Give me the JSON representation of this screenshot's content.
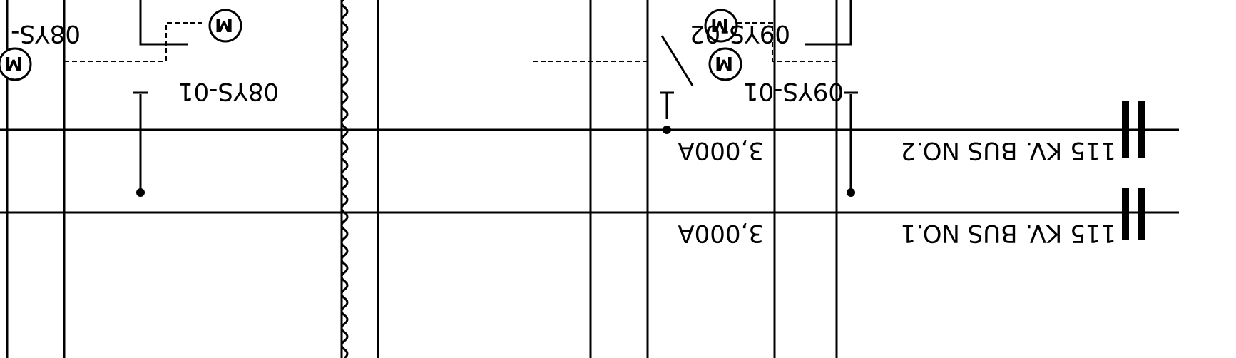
{
  "buses": [
    {
      "label": "115 KV. BUS NO.2",
      "rating": "3,000A"
    },
    {
      "label": "115 KV. BUS NO.1",
      "rating": "3,000A"
    }
  ],
  "switches": {
    "08ys_01": "08YS-01",
    "08ys_partial": "08YS-",
    "09ys_01": "09YS-01",
    "09ys_02": "09YS-02"
  },
  "motor_symbol": "M"
}
